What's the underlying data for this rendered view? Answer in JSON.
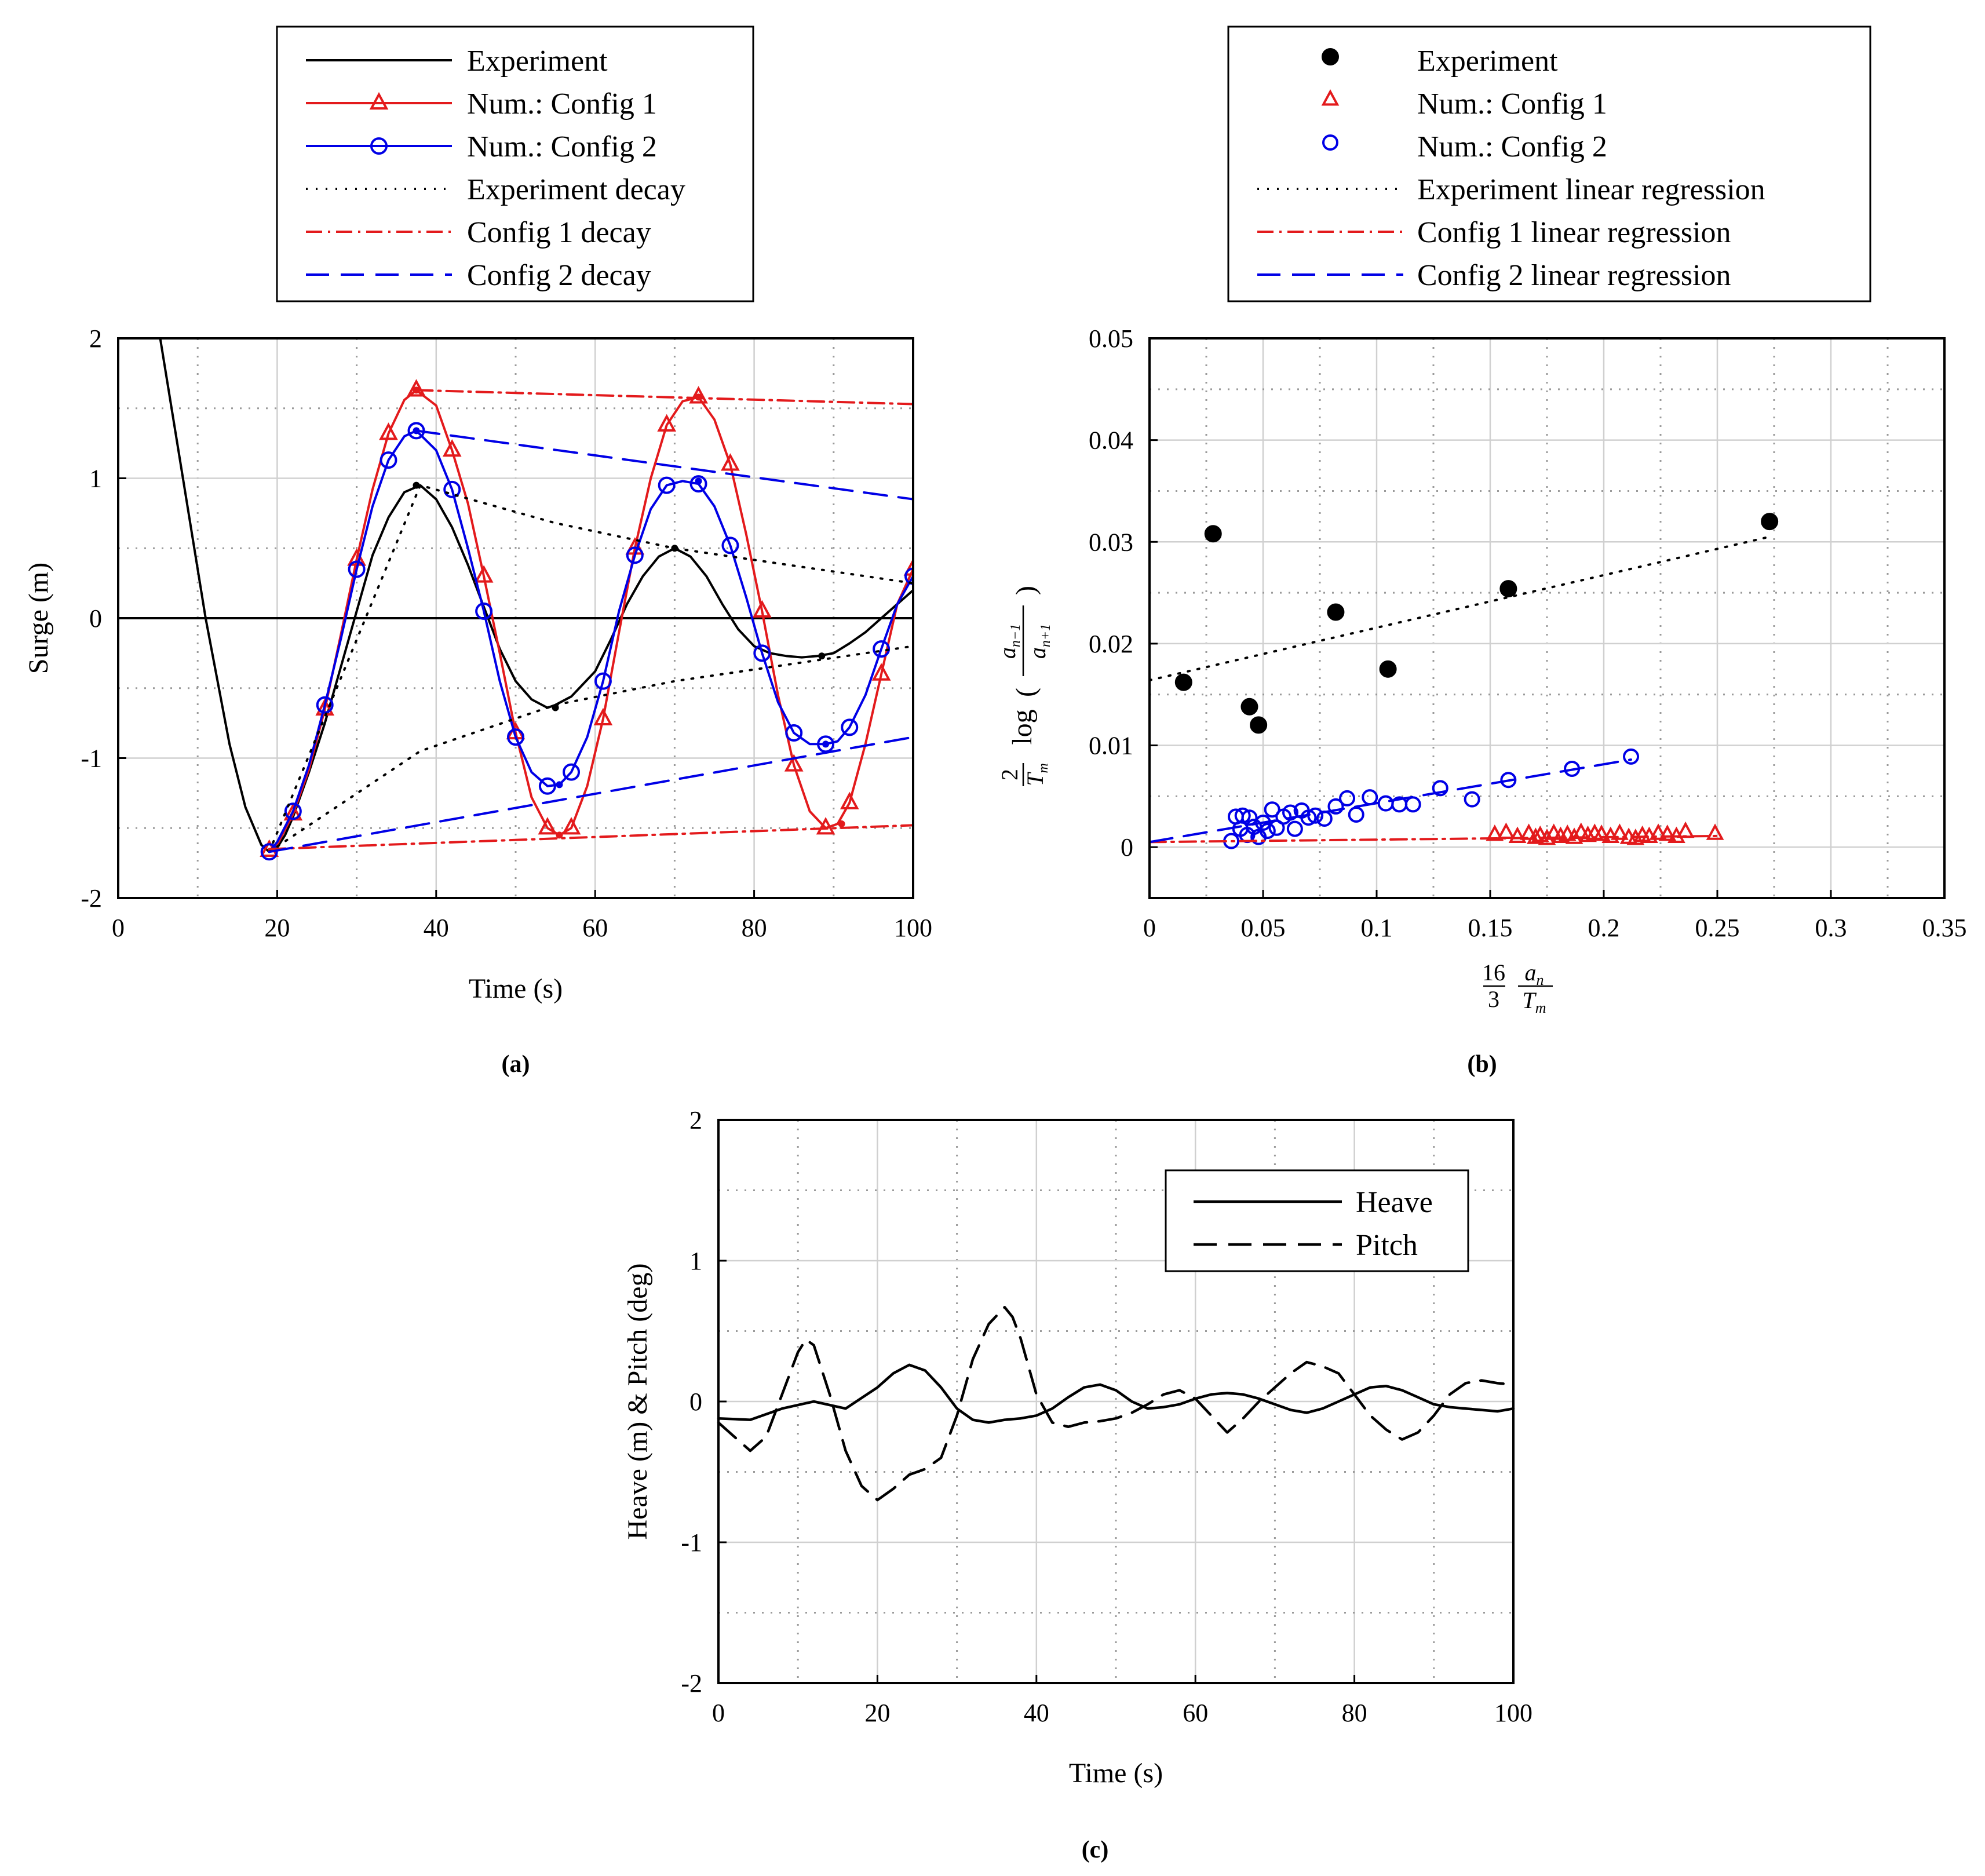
{
  "chart_data": [
    {
      "panel": "a",
      "type": "line",
      "caption": "(a)",
      "title": "",
      "xlabel": "Time (s)",
      "ylabel": "Surge (m)",
      "xlim": [
        0,
        100
      ],
      "ylim": [
        -2,
        2
      ],
      "xticks": [
        0,
        20,
        40,
        60,
        80,
        100
      ],
      "yticks": [
        -2,
        -1,
        0,
        1,
        2
      ],
      "xtick_labels": [
        "0",
        "20",
        "40",
        "60",
        "80",
        "100"
      ],
      "ytick_labels": [
        "-2",
        "-1",
        "0",
        "1",
        "2"
      ],
      "grid": true,
      "legend_position": "top",
      "series": [
        {
          "name": "Experiment",
          "color": "#000000",
          "style": "solid",
          "marker": "none",
          "x": [
            5,
            8,
            11,
            14,
            16,
            18,
            19,
            20,
            21,
            22,
            24,
            26,
            28,
            30,
            32,
            34,
            36,
            38,
            40,
            42,
            44,
            46,
            48,
            50,
            52,
            54,
            55,
            57,
            60,
            62,
            64,
            66,
            68,
            70,
            72,
            74,
            76,
            78,
            80,
            82,
            84,
            86,
            88,
            90,
            92,
            94,
            96,
            98,
            100
          ],
          "y": [
            2.1,
            1.05,
            0,
            -0.9,
            -1.35,
            -1.62,
            -1.67,
            -1.64,
            -1.55,
            -1.42,
            -1.1,
            -0.75,
            -0.35,
            0.05,
            0.45,
            0.72,
            0.9,
            0.95,
            0.85,
            0.65,
            0.38,
            0.08,
            -0.22,
            -0.45,
            -0.58,
            -0.64,
            -0.62,
            -0.56,
            -0.38,
            -0.15,
            0.1,
            0.3,
            0.44,
            0.5,
            0.44,
            0.3,
            0.1,
            -0.08,
            -0.2,
            -0.25,
            -0.27,
            -0.28,
            -0.27,
            -0.25,
            -0.18,
            -0.1,
            0.0,
            0.1,
            0.2
          ]
        },
        {
          "name": "Num.: Config 1",
          "color": "#e31a1c",
          "style": "solid",
          "marker": "triangle",
          "x": [
            19,
            20,
            22,
            24,
            26,
            28,
            30,
            32,
            34,
            36,
            37.5,
            40,
            42,
            44,
            46,
            48,
            50,
            52,
            54,
            55.5,
            57,
            59,
            61,
            63,
            65,
            67,
            69,
            71,
            73,
            75,
            77,
            79,
            81,
            83,
            85,
            87,
            89,
            90.5,
            92,
            94,
            96,
            98,
            100
          ],
          "y": [
            -1.66,
            -1.62,
            -1.4,
            -1.08,
            -0.65,
            -0.12,
            0.42,
            0.92,
            1.32,
            1.56,
            1.63,
            1.52,
            1.2,
            0.82,
            0.3,
            -0.25,
            -0.82,
            -1.28,
            -1.5,
            -1.55,
            -1.5,
            -1.2,
            -0.72,
            -0.1,
            0.5,
            1.0,
            1.38,
            1.55,
            1.58,
            1.42,
            1.1,
            0.6,
            0.05,
            -0.55,
            -1.05,
            -1.38,
            -1.5,
            -1.47,
            -1.32,
            -0.9,
            -0.4,
            0.1,
            0.35
          ]
        },
        {
          "name": "Num.: Config 2",
          "color": "#0000e6",
          "style": "solid",
          "marker": "circle",
          "x": [
            19,
            20,
            22,
            24,
            26,
            28,
            30,
            32,
            34,
            36,
            37.5,
            40,
            42,
            44,
            46,
            48,
            50,
            52,
            54,
            55.5,
            57,
            59,
            61,
            63,
            65,
            67,
            69,
            71,
            73,
            75,
            77,
            79,
            81,
            83,
            85,
            87,
            89,
            90.5,
            92,
            94,
            96,
            98,
            100
          ],
          "y": [
            -1.67,
            -1.6,
            -1.38,
            -1.05,
            -0.62,
            -0.15,
            0.35,
            0.8,
            1.13,
            1.3,
            1.34,
            1.2,
            0.92,
            0.5,
            0.05,
            -0.45,
            -0.85,
            -1.1,
            -1.2,
            -1.19,
            -1.1,
            -0.85,
            -0.45,
            0.05,
            0.45,
            0.78,
            0.95,
            0.98,
            0.96,
            0.8,
            0.52,
            0.15,
            -0.25,
            -0.6,
            -0.82,
            -0.9,
            -0.9,
            -0.88,
            -0.78,
            -0.55,
            -0.22,
            0.1,
            0.3
          ]
        },
        {
          "name": "Experiment decay",
          "color": "#000000",
          "style": "dotted",
          "marker": "none",
          "segments": [
            {
              "x": [
                19,
                38,
                55,
                70,
                100
              ],
              "y": [
                -1.67,
                0.95,
                0.68,
                0.5,
                0.25
              ]
            },
            {
              "x": [
                19,
                38,
                55,
                70,
                100
              ],
              "y": [
                -1.67,
                -0.95,
                -0.62,
                -0.45,
                -0.2
              ]
            }
          ]
        },
        {
          "name": "Config 1 decay",
          "color": "#e31a1c",
          "style": "dashdot",
          "marker": "none",
          "segments": [
            {
              "x": [
                37.5,
                100
              ],
              "y": [
                1.63,
                1.53
              ]
            },
            {
              "x": [
                19,
                100
              ],
              "y": [
                -1.65,
                -1.48
              ]
            }
          ]
        },
        {
          "name": "Config 2 decay",
          "color": "#0000e6",
          "style": "dashed",
          "marker": "none",
          "segments": [
            {
              "x": [
                37.5,
                100
              ],
              "y": [
                1.34,
                0.85
              ]
            },
            {
              "x": [
                19,
                100
              ],
              "y": [
                -1.67,
                -0.85
              ]
            }
          ]
        }
      ],
      "zero_line": 0,
      "peak_dots": {
        "x": [
          37.5,
          55,
          70,
          88.5,
          37.5,
          55.5,
          73,
          91,
          37.5,
          55.5,
          73,
          89
        ],
        "y": [
          0.95,
          -0.64,
          0.5,
          -0.27,
          1.63,
          -1.55,
          1.58,
          -1.47,
          1.34,
          -1.19,
          0.98,
          -0.9
        ]
      }
    },
    {
      "panel": "b",
      "type": "scatter",
      "caption": "(b)",
      "title": "",
      "xlabel": "16/3 · a_n / T_m",
      "ylabel": "2/T_m log( a_{n-1} / a_{n+1} )",
      "xlim": [
        0,
        0.35
      ],
      "ylim": [
        -0.005,
        0.05
      ],
      "xticks": [
        0,
        0.05,
        0.1,
        0.15,
        0.2,
        0.25,
        0.3,
        0.35
      ],
      "yticks": [
        0,
        0.01,
        0.02,
        0.03,
        0.04,
        0.05
      ],
      "xtick_labels": [
        "0",
        "0.05",
        "0.1",
        "0.15",
        "0.2",
        "0.25",
        "0.3",
        "0.35"
      ],
      "ytick_labels": [
        "0",
        "0.01",
        "0.02",
        "0.03",
        "0.04",
        "0.05"
      ],
      "grid": true,
      "legend_position": "top",
      "series": [
        {
          "name": "Experiment",
          "color": "#000000",
          "marker": "filled-circle",
          "x": [
            0.015,
            0.028,
            0.044,
            0.048,
            0.082,
            0.105,
            0.158,
            0.273
          ],
          "y": [
            0.0162,
            0.0308,
            0.0138,
            0.012,
            0.0231,
            0.0175,
            0.0254,
            0.032
          ]
        },
        {
          "name": "Num.: Config 1",
          "color": "#e31a1c",
          "marker": "triangle",
          "x": [
            0.152,
            0.157,
            0.162,
            0.167,
            0.17,
            0.172,
            0.175,
            0.178,
            0.181,
            0.184,
            0.187,
            0.19,
            0.193,
            0.196,
            0.199,
            0.203,
            0.207,
            0.211,
            0.214,
            0.217,
            0.22,
            0.224,
            0.228,
            0.232,
            0.236,
            0.249
          ],
          "y": [
            0.0012,
            0.0014,
            0.001,
            0.0013,
            0.0009,
            0.0011,
            0.0008,
            0.0013,
            0.001,
            0.0012,
            0.0009,
            0.0014,
            0.0011,
            0.0013,
            0.0012,
            0.001,
            0.0013,
            0.0009,
            0.0008,
            0.0011,
            0.001,
            0.0013,
            0.0012,
            0.001,
            0.0015,
            0.0013
          ]
        },
        {
          "name": "Num.: Config 2",
          "color": "#0000e6",
          "marker": "circle",
          "x": [
            0.036,
            0.038,
            0.04,
            0.041,
            0.043,
            0.044,
            0.046,
            0.048,
            0.05,
            0.052,
            0.054,
            0.056,
            0.059,
            0.062,
            0.064,
            0.067,
            0.07,
            0.073,
            0.077,
            0.082,
            0.087,
            0.091,
            0.097,
            0.104,
            0.11,
            0.116,
            0.128,
            0.142,
            0.158,
            0.186,
            0.212
          ],
          "y": [
            0.0006,
            0.003,
            0.0018,
            0.0031,
            0.0012,
            0.0029,
            0.002,
            0.001,
            0.0024,
            0.0016,
            0.0037,
            0.0019,
            0.003,
            0.0034,
            0.0018,
            0.0036,
            0.0029,
            0.0031,
            0.0028,
            0.004,
            0.0048,
            0.0032,
            0.0049,
            0.0043,
            0.0042,
            0.0042,
            0.0058,
            0.0047,
            0.0066,
            0.0077,
            0.0089
          ]
        },
        {
          "name": "Experiment linear regression",
          "color": "#000000",
          "style": "dotted",
          "x": [
            0,
            0.273
          ],
          "y": [
            0.0164,
            0.0305
          ]
        },
        {
          "name": "Config 1 linear regression",
          "color": "#e31a1c",
          "style": "dashdot",
          "x": [
            0,
            0.25
          ],
          "y": [
            0.0005,
            0.0011
          ]
        },
        {
          "name": "Config 2 linear regression",
          "color": "#0000e6",
          "style": "dashed",
          "x": [
            0,
            0.212
          ],
          "y": [
            0.0005,
            0.0086
          ]
        }
      ]
    },
    {
      "panel": "c",
      "type": "line",
      "caption": "(c)",
      "title": "",
      "xlabel": "Time (s)",
      "ylabel": "Heave (m) & Pitch (deg)",
      "xlim": [
        0,
        100
      ],
      "ylim": [
        -2,
        2
      ],
      "xticks": [
        0,
        20,
        40,
        60,
        80,
        100
      ],
      "yticks": [
        -2,
        -1,
        0,
        1,
        2
      ],
      "xtick_labels": [
        "0",
        "20",
        "40",
        "60",
        "80",
        "100"
      ],
      "ytick_labels": [
        "-2",
        "-1",
        "0",
        "1",
        "2"
      ],
      "grid": true,
      "legend_position": "top-right",
      "series": [
        {
          "name": "Heave",
          "color": "#000000",
          "style": "solid",
          "x": [
            0,
            4,
            8,
            12,
            16,
            20,
            22,
            24,
            26,
            28,
            30,
            32,
            34,
            36,
            38,
            40,
            42,
            44,
            46,
            48,
            50,
            52,
            54,
            56,
            58,
            60,
            62,
            64,
            66,
            68,
            70,
            72,
            74,
            76,
            78,
            80,
            82,
            84,
            86,
            88,
            90,
            92,
            94,
            96,
            98,
            100
          ],
          "y": [
            -0.12,
            -0.13,
            -0.05,
            0.0,
            -0.05,
            0.1,
            0.2,
            0.26,
            0.22,
            0.1,
            -0.05,
            -0.13,
            -0.15,
            -0.13,
            -0.12,
            -0.1,
            -0.05,
            0.03,
            0.1,
            0.12,
            0.08,
            0.0,
            -0.05,
            -0.04,
            -0.02,
            0.02,
            0.05,
            0.06,
            0.05,
            0.02,
            -0.02,
            -0.06,
            -0.08,
            -0.05,
            0.0,
            0.05,
            0.1,
            0.11,
            0.08,
            0.03,
            -0.02,
            -0.04,
            -0.05,
            -0.06,
            -0.07,
            -0.05
          ]
        },
        {
          "name": "Pitch",
          "color": "#000000",
          "style": "dashed",
          "x": [
            0,
            2,
            4,
            6,
            8,
            10,
            11,
            12,
            14,
            16,
            18,
            20,
            22,
            24,
            26,
            28,
            30,
            32,
            34,
            36,
            37,
            38,
            40,
            42,
            44,
            46,
            48,
            50,
            52,
            54,
            56,
            58,
            60,
            62,
            64,
            66,
            68,
            70,
            72,
            74,
            76,
            78,
            80,
            82,
            84,
            86,
            88,
            90,
            92,
            94,
            96,
            98,
            100
          ],
          "y": [
            -0.15,
            -0.25,
            -0.35,
            -0.25,
            0.05,
            0.35,
            0.44,
            0.4,
            0.05,
            -0.35,
            -0.6,
            -0.7,
            -0.62,
            -0.52,
            -0.48,
            -0.4,
            -0.1,
            0.3,
            0.55,
            0.67,
            0.6,
            0.45,
            0.05,
            -0.15,
            -0.18,
            -0.15,
            -0.14,
            -0.12,
            -0.08,
            -0.02,
            0.05,
            0.08,
            0.02,
            -0.1,
            -0.22,
            -0.12,
            0.0,
            0.1,
            0.2,
            0.28,
            0.25,
            0.2,
            0.05,
            -0.1,
            -0.2,
            -0.27,
            -0.22,
            -0.1,
            0.05,
            0.13,
            0.15,
            0.13,
            0.12
          ]
        }
      ]
    }
  ]
}
